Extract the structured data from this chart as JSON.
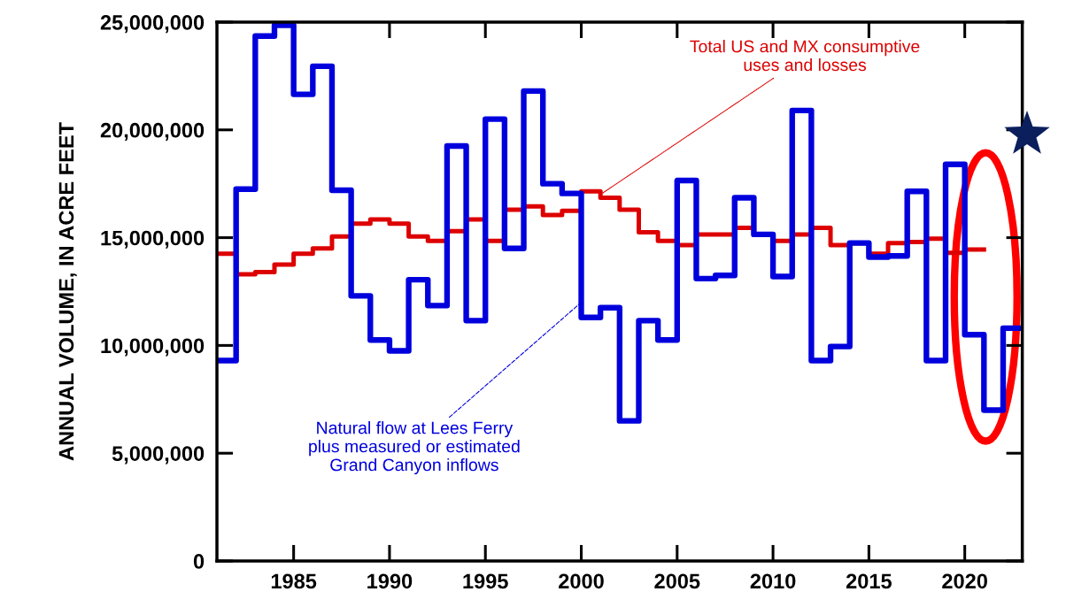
{
  "chart_data": {
    "type": "step",
    "ylabel": "ANNUAL VOLUME, IN ACRE FEET",
    "xlim": [
      1981,
      2023
    ],
    "xticks": [
      1985,
      1990,
      1995,
      2000,
      2005,
      2010,
      2015,
      2020
    ],
    "ylim": [
      0,
      25000000
    ],
    "yticks": [
      {
        "value": 0,
        "label": "0"
      },
      {
        "value": 5000000,
        "label": "5,000,000"
      },
      {
        "value": 10000000,
        "label": "10,000,000"
      },
      {
        "value": 15000000,
        "label": "15,000,000"
      },
      {
        "value": 20000000,
        "label": "20,000,000"
      },
      {
        "value": 25000000,
        "label": "25,000,000"
      }
    ],
    "grid": false,
    "series": [
      {
        "color": "#dd0000",
        "x": [
          1981,
          1982,
          1983,
          1984,
          1985,
          1986,
          1987,
          1988,
          1989,
          1990,
          1991,
          1992,
          1993,
          1994,
          1995,
          1996,
          1997,
          1998,
          1999,
          2000,
          2001,
          2002,
          2003,
          2004,
          2005,
          2006,
          2007,
          2008,
          2009,
          2010,
          2011,
          2012,
          2013,
          2014,
          2015,
          2016,
          2017,
          2018,
          2019,
          2020,
          2021
        ],
        "values": [
          14250000,
          13300000,
          13400000,
          13750000,
          14250000,
          14500000,
          15050000,
          15650000,
          15850000,
          15650000,
          15050000,
          14850000,
          15300000,
          15850000,
          14850000,
          16300000,
          16450000,
          16050000,
          16250000,
          17150000,
          16850000,
          16300000,
          15250000,
          14850000,
          14650000,
          15150000,
          15150000,
          15450000,
          15150000,
          14850000,
          15150000,
          15450000,
          14650000,
          14750000,
          14250000,
          14750000,
          14800000,
          14950000,
          14300000,
          14450000,
          14450000
        ]
      },
      {
        "color": "#0000dd",
        "x": [
          1981,
          1982,
          1983,
          1984,
          1985,
          1986,
          1987,
          1988,
          1989,
          1990,
          1991,
          1992,
          1993,
          1994,
          1995,
          1996,
          1997,
          1998,
          1999,
          2000,
          2001,
          2002,
          2003,
          2004,
          2005,
          2006,
          2007,
          2008,
          2009,
          2010,
          2011,
          2012,
          2013,
          2014,
          2015,
          2016,
          2017,
          2018,
          2019,
          2020,
          2021,
          2022,
          2023
        ],
        "values": [
          9300000,
          17250000,
          24350000,
          24850000,
          21650000,
          22950000,
          17200000,
          12300000,
          10250000,
          9750000,
          13050000,
          11850000,
          19250000,
          11150000,
          20500000,
          14500000,
          21800000,
          17500000,
          17050000,
          11300000,
          11750000,
          6500000,
          11150000,
          10250000,
          17650000,
          13100000,
          13250000,
          16850000,
          15150000,
          13200000,
          20900000,
          9300000,
          9950000,
          14750000,
          14100000,
          14150000,
          17150000,
          9300000,
          18400000,
          10500000,
          7000000,
          10800000,
          10800000
        ]
      }
    ],
    "annotations": [
      {
        "text": "Total US and MX consumptive\nuses and losses",
        "x": 2001,
        "y": 17000000
      },
      {
        "text": "Natural flow at Lees Ferry\nplus measured or estimated\nGrand Canyon inflows",
        "x": 2000,
        "y": 12000000
      }
    ]
  }
}
